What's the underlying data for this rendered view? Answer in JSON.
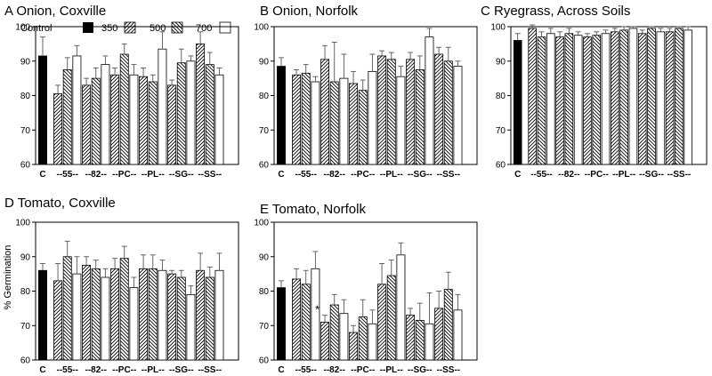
{
  "figure": {
    "y_axis_label": "% Germination",
    "legend": [
      {
        "label": "Control",
        "fill": "solid"
      },
      {
        "label": "350",
        "fill": "hatch-right"
      },
      {
        "label": "500",
        "fill": "hatch-left"
      },
      {
        "label": "700",
        "fill": "white"
      }
    ]
  },
  "chart_data": [
    {
      "id": "A",
      "type": "bar",
      "title": "A Onion, Coxville",
      "ylim": [
        60,
        100
      ],
      "yticks": [
        60,
        70,
        80,
        90,
        100
      ],
      "control": {
        "label": "C",
        "value": 91.5,
        "error": 5.5
      },
      "groups": [
        "--55--",
        "--82--",
        "--PC--",
        "--PL--",
        "--SG--",
        "--SS--"
      ],
      "series_names": [
        "350",
        "500",
        "700"
      ],
      "values": [
        [
          80.5,
          87.5,
          91.5
        ],
        [
          83,
          85,
          89
        ],
        [
          86,
          92,
          86
        ],
        [
          85.5,
          84,
          93.5
        ],
        [
          83,
          89.5,
          90
        ],
        [
          95,
          89,
          86
        ]
      ],
      "errors": [
        [
          2.5,
          3.5,
          3
        ],
        [
          2,
          3,
          2.5
        ],
        [
          2,
          3,
          3
        ],
        [
          2.5,
          2,
          5
        ],
        [
          1.5,
          4,
          1.5
        ],
        [
          3.5,
          3.5,
          2
        ]
      ],
      "annotations": []
    },
    {
      "id": "B",
      "type": "bar",
      "title": "B Onion, Norfolk",
      "ylim": [
        60,
        100
      ],
      "yticks": [
        60,
        70,
        80,
        90,
        100
      ],
      "control": {
        "label": "C",
        "value": 88.5,
        "error": 2.5
      },
      "groups": [
        "--55--",
        "--82--",
        "--PC--",
        "--PL--",
        "--SG--",
        "--SS--"
      ],
      "series_names": [
        "350",
        "500",
        "700"
      ],
      "values": [
        [
          86,
          86.5,
          84
        ],
        [
          90.5,
          84,
          85
        ],
        [
          83.5,
          81.5,
          87
        ],
        [
          91.5,
          90.5,
          85.5
        ],
        [
          90.5,
          87.5,
          97
        ],
        [
          92,
          90,
          88.5
        ]
      ],
      "errors": [
        [
          1.5,
          2.5,
          1.5
        ],
        [
          4,
          11.5,
          7
        ],
        [
          3.5,
          3,
          5
        ],
        [
          1.5,
          2,
          3
        ],
        [
          2,
          4,
          2.5
        ],
        [
          2,
          4,
          1.5
        ]
      ],
      "annotations": []
    },
    {
      "id": "C",
      "type": "bar",
      "title": "C Ryegrass, Across Soils",
      "ylim": [
        60,
        100
      ],
      "yticks": [
        60,
        70,
        80,
        90,
        100
      ],
      "control": {
        "label": "C",
        "value": 96,
        "error": 2
      },
      "groups": [
        "--55--",
        "--82--",
        "--PC--",
        "--PL--",
        "--SG--",
        "--SS--"
      ],
      "series_names": [
        "350",
        "500",
        "700"
      ],
      "values": [
        [
          99.5,
          97,
          98
        ],
        [
          97,
          98,
          97.5
        ],
        [
          97,
          97.5,
          98
        ],
        [
          98.5,
          99,
          99.5
        ],
        [
          98,
          99.5,
          98.5
        ],
        [
          98.5,
          99.5,
          99
        ]
      ],
      "errors": [
        [
          1,
          1.5,
          1.5
        ],
        [
          1.5,
          1.5,
          1
        ],
        [
          1,
          1,
          1
        ],
        [
          1,
          1,
          0.5
        ],
        [
          1,
          0.5,
          1
        ],
        [
          1,
          0.5,
          1
        ]
      ],
      "annotations": []
    },
    {
      "id": "D",
      "type": "bar",
      "title": "D Tomato, Coxville",
      "ylim": [
        60,
        100
      ],
      "yticks": [
        60,
        70,
        80,
        90,
        100
      ],
      "control": {
        "label": "C",
        "value": 86,
        "error": 2
      },
      "groups": [
        "--55--",
        "--82--",
        "--PC--",
        "--PL--",
        "--SG--",
        "--SS--"
      ],
      "series_names": [
        "350",
        "500",
        "700"
      ],
      "values": [
        [
          83,
          90,
          85
        ],
        [
          87.5,
          86.5,
          84
        ],
        [
          86.5,
          89.5,
          81
        ],
        [
          86.5,
          86.5,
          86
        ],
        [
          85,
          84,
          79
        ],
        [
          86,
          84,
          86
        ]
      ],
      "errors": [
        [
          5,
          4.5,
          5
        ],
        [
          2.5,
          2.5,
          2.5
        ],
        [
          3,
          3.5,
          3
        ],
        [
          4,
          4,
          3
        ],
        [
          1,
          2,
          2.5
        ],
        [
          5,
          3,
          5
        ]
      ],
      "annotations": []
    },
    {
      "id": "E",
      "type": "bar",
      "title": "E Tomato, Norfolk",
      "ylim": [
        60,
        100
      ],
      "yticks": [
        60,
        70,
        80,
        90,
        100
      ],
      "control": {
        "label": "C",
        "value": 81,
        "error": 2
      },
      "groups": [
        "--55--",
        "--82--",
        "--PC--",
        "--PL--",
        "--SG--",
        "--SS--"
      ],
      "series_names": [
        "350",
        "500",
        "700"
      ],
      "values": [
        [
          83.5,
          82,
          86.5
        ],
        [
          71,
          76,
          73.5
        ],
        [
          68,
          72.5,
          70.5
        ],
        [
          82,
          84.5,
          90.5
        ],
        [
          73,
          71.5,
          70.5
        ],
        [
          75,
          80.5,
          74.5
        ]
      ],
      "errors": [
        [
          3,
          4,
          5
        ],
        [
          2,
          3,
          4
        ],
        [
          2,
          5,
          4
        ],
        [
          6,
          4.5,
          3.5
        ],
        [
          2,
          5,
          9
        ],
        [
          5,
          5,
          4.5
        ]
      ],
      "annotations": [
        {
          "text": "*",
          "group": 1,
          "series": 0
        }
      ]
    }
  ]
}
